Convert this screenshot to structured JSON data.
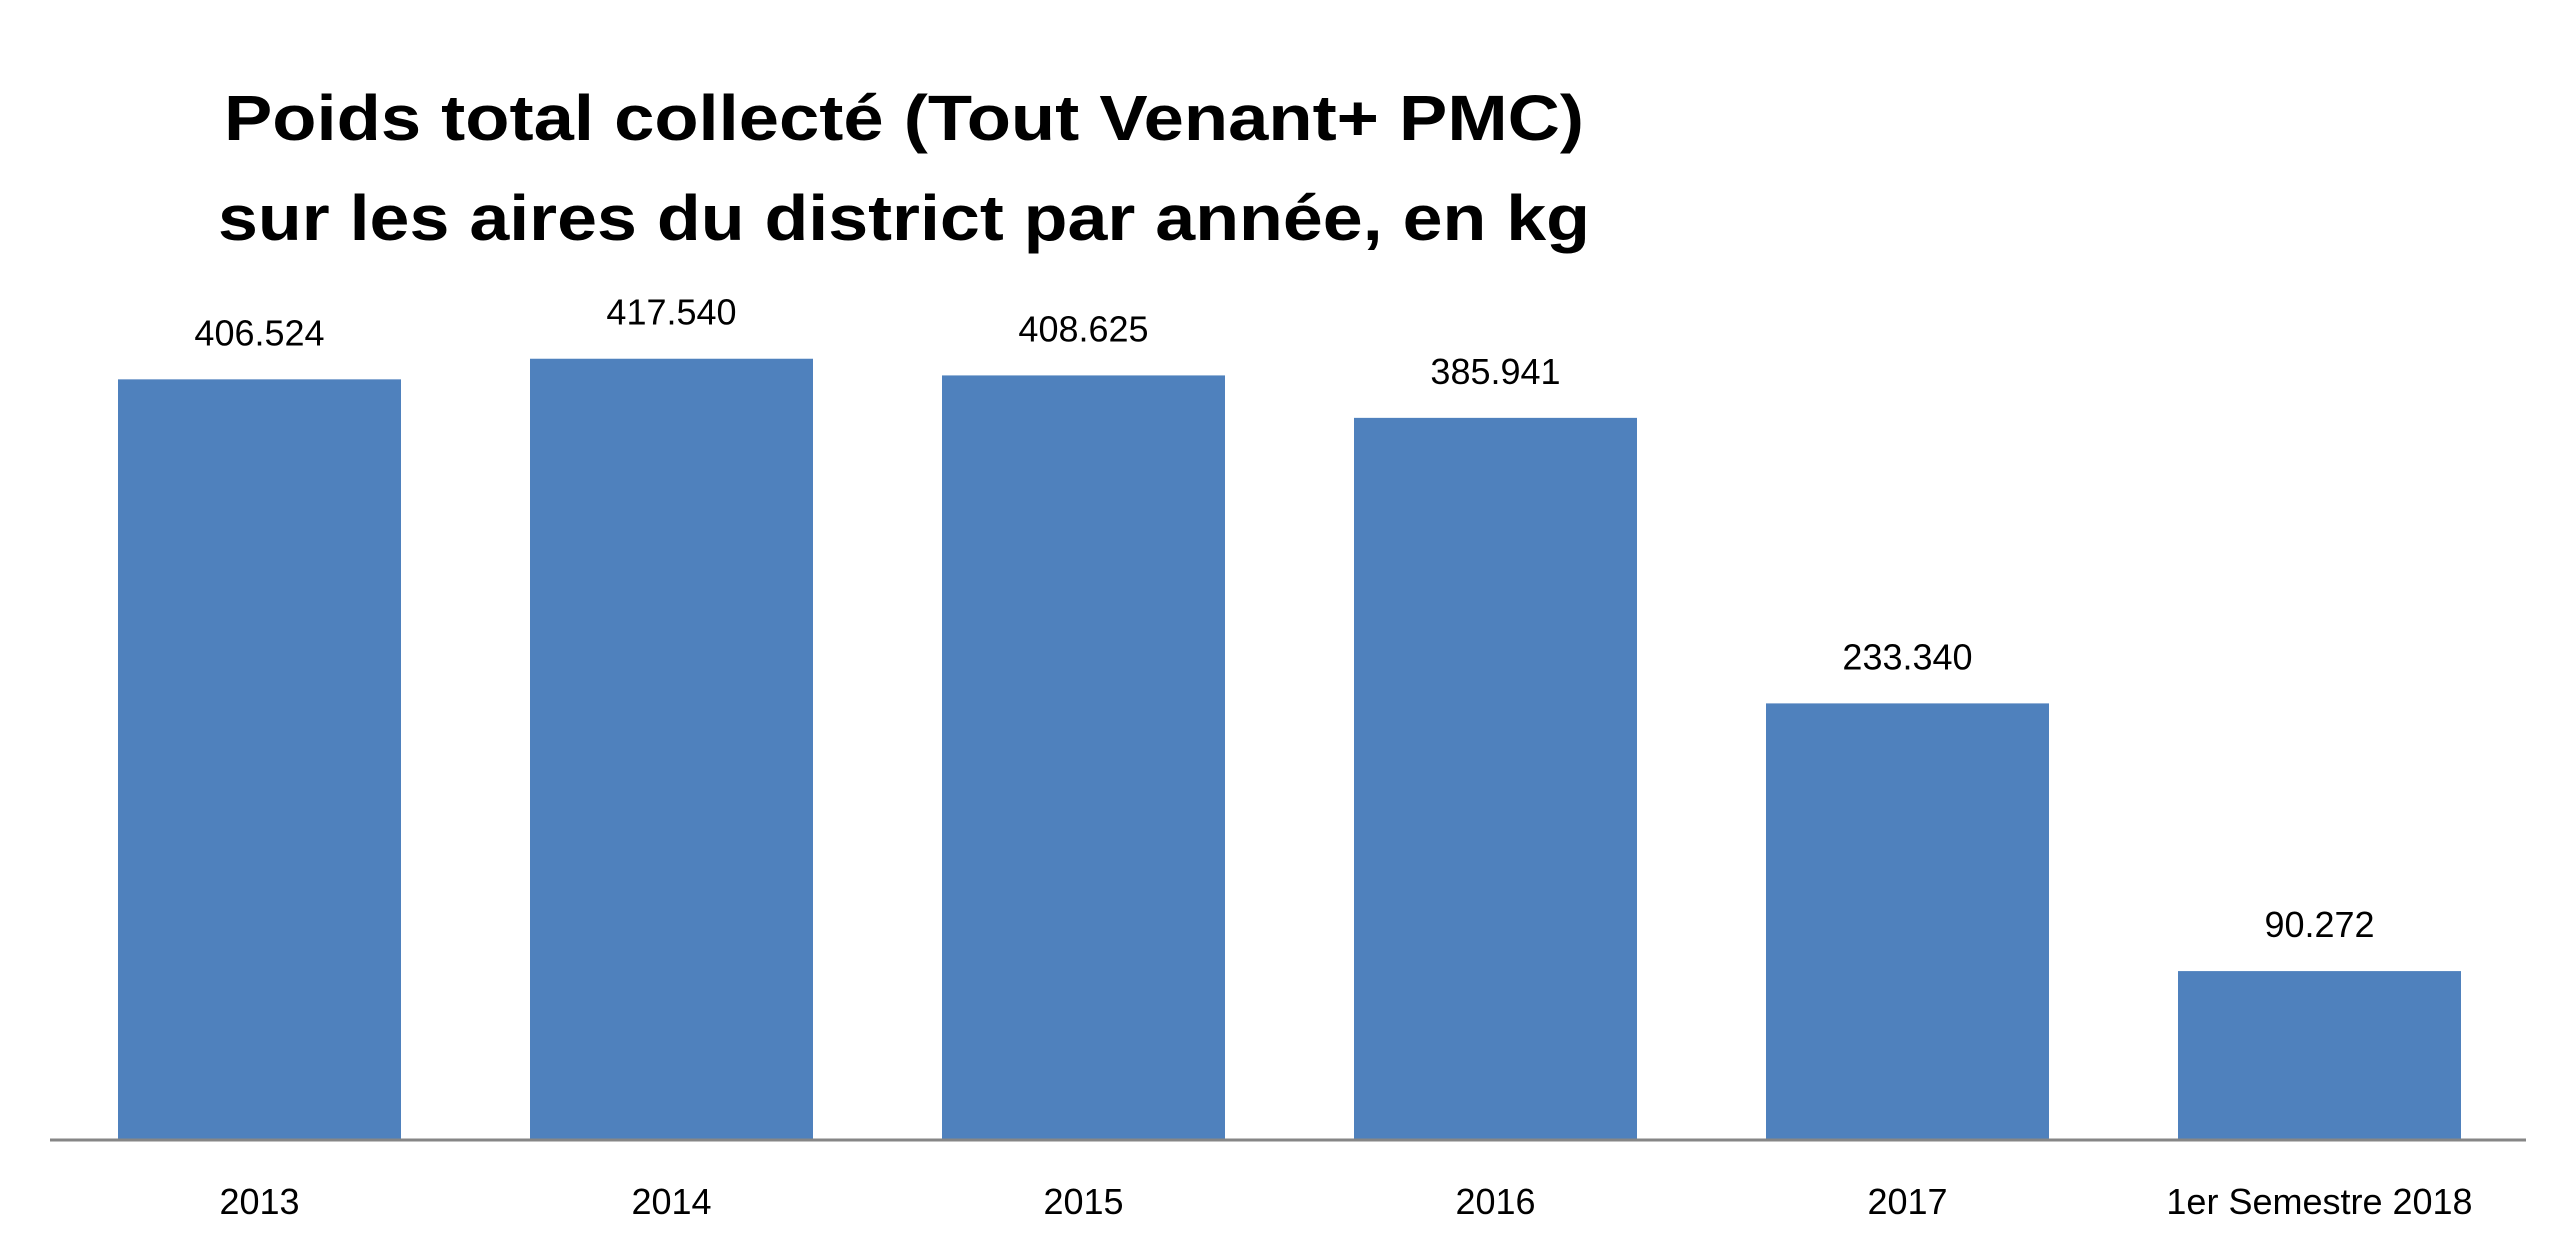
{
  "chart_data": {
    "type": "bar",
    "title": [
      "Poids total collecté (Tout Venant+ PMC)",
      "sur les aires du district  par année, en kg"
    ],
    "categories": [
      "2013",
      "2014",
      "2015",
      "2016",
      "2017",
      "1er Semestre 2018"
    ],
    "values": [
      406524,
      417540,
      408625,
      385941,
      233340,
      90272
    ],
    "data_labels": [
      "406.524",
      "417.540",
      "408.625",
      "385.941",
      "233.340",
      "90.272"
    ],
    "xlabel": "",
    "ylabel": "",
    "ylim": [
      0,
      450000
    ],
    "grid": false,
    "legend": "none",
    "bar_color": "#4F81BD",
    "axis_color": "#868686"
  }
}
